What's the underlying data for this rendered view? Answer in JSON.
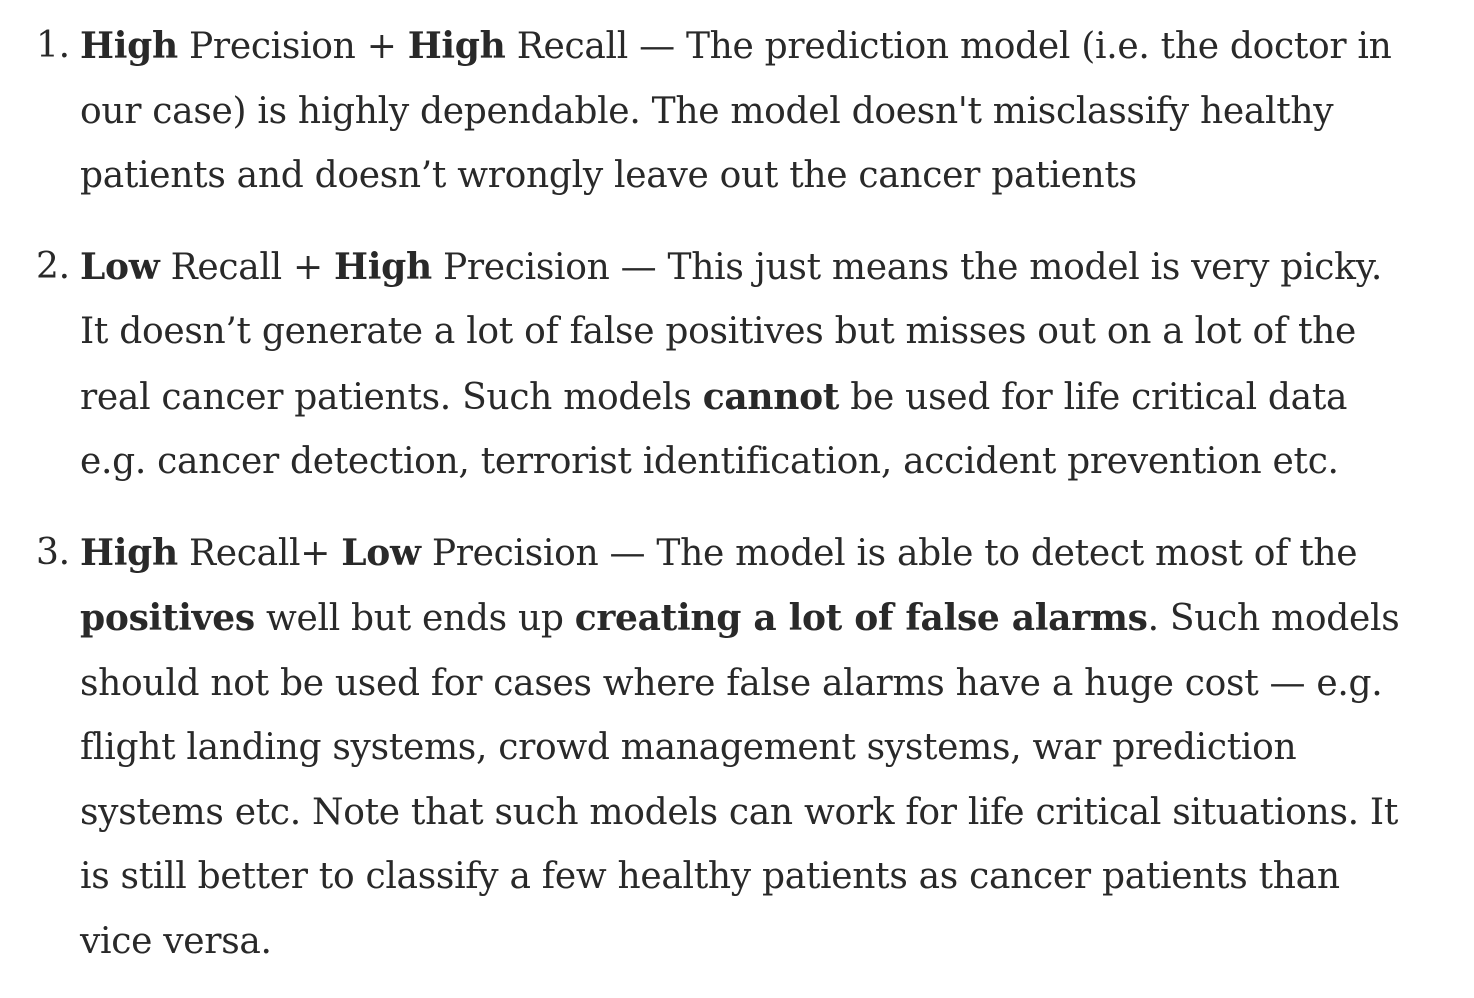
{
  "items": [
    {
      "number": "1.",
      "lines": [
        [
          {
            "text": "High",
            "bold": true
          },
          {
            "text": " Precision + ",
            "bold": false
          },
          {
            "text": "High",
            "bold": true
          },
          {
            "text": " Recall — The prediction model (i.e. the doctor in",
            "bold": false
          }
        ],
        [
          {
            "text": "our case) is highly dependable. The model doesn't misclassify healthy",
            "bold": false
          }
        ],
        [
          {
            "text": "patients and doesn’t wrongly leave out the cancer patients",
            "bold": false
          }
        ]
      ]
    },
    {
      "number": "2.",
      "lines": [
        [
          {
            "text": "Low",
            "bold": true
          },
          {
            "text": " Recall + ",
            "bold": false
          },
          {
            "text": "High",
            "bold": true
          },
          {
            "text": " Precision — This just means the model is very picky.",
            "bold": false
          }
        ],
        [
          {
            "text": "It doesn’t generate a lot of false positives but misses out on a lot of the",
            "bold": false
          }
        ],
        [
          {
            "text": "real cancer patients. Such models ",
            "bold": false
          },
          {
            "text": "cannot",
            "bold": true
          },
          {
            "text": " be used for life critical data",
            "bold": false
          }
        ],
        [
          {
            "text": "e.g. cancer detection, terrorist identification, accident prevention etc.",
            "bold": false
          }
        ]
      ]
    },
    {
      "number": "3.",
      "lines": [
        [
          {
            "text": "High",
            "bold": true
          },
          {
            "text": " Recall+ ",
            "bold": false
          },
          {
            "text": "Low",
            "bold": true
          },
          {
            "text": " Precision — The model is able to detect most of the",
            "bold": false
          }
        ],
        [
          {
            "text": "positives",
            "bold": true
          },
          {
            "text": " well but ends up ",
            "bold": false
          },
          {
            "text": "creating a lot of false alarms",
            "bold": true
          },
          {
            "text": ". Such models",
            "bold": false
          }
        ],
        [
          {
            "text": "should not be used for cases where false alarms have a huge cost — e.g.",
            "bold": false
          }
        ],
        [
          {
            "text": "flight landing systems, crowd management systems, war prediction",
            "bold": false
          }
        ],
        [
          {
            "text": "systems etc. Note that such models can work for life critical situations. It",
            "bold": false
          }
        ],
        [
          {
            "text": "is still better to classify a few healthy patients as cancer patients than",
            "bold": false
          }
        ],
        [
          {
            "text": "vice versa.",
            "bold": false
          }
        ]
      ]
    }
  ]
}
